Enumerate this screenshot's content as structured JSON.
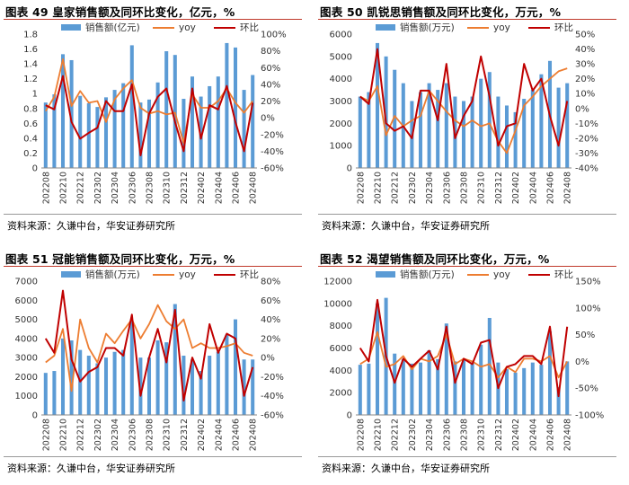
{
  "chart_data": [
    {
      "type": "bar",
      "title": "图表 49 皇家销售额及同环比变化，亿元，%",
      "source": "资料来源：久谦中台，华安证券研究所",
      "legend": {
        "bar": "销售额(亿元)",
        "yoy": "yoy",
        "mom": "环比"
      },
      "x": [
        "202208",
        "202209",
        "202210",
        "202211",
        "202212",
        "202301",
        "202302",
        "202303",
        "202304",
        "202305",
        "202306",
        "202307",
        "202308",
        "202309",
        "202310",
        "202311",
        "202312",
        "202401",
        "202402",
        "202403",
        "202404",
        "202405",
        "202406",
        "202407",
        "202408"
      ],
      "tick_labels": [
        "202208",
        "202210",
        "202212",
        "202302",
        "202304",
        "202306",
        "202308",
        "202310",
        "202312",
        "202402",
        "202404",
        "202406",
        "202408"
      ],
      "ylim_left": [
        0,
        1.8
      ],
      "yticks_left": [
        "0",
        "0.2",
        "0.4",
        "0.6",
        "0.8",
        "1",
        "1.2",
        "1.4",
        "1.6",
        "1.8"
      ],
      "ylim_right": [
        -60,
        100
      ],
      "yticks_right": [
        "-60%",
        "-40%",
        "-20%",
        "0%",
        "20%",
        "40%",
        "60%",
        "80%",
        "100%"
      ],
      "sales": [
        0.88,
        0.99,
        1.53,
        1.45,
        0.97,
        0.87,
        0.82,
        0.95,
        1.05,
        1.14,
        1.65,
        0.88,
        0.92,
        1.15,
        1.57,
        1.52,
        0.93,
        1.23,
        0.96,
        1.1,
        1.23,
        1.68,
        1.62,
        1.05,
        1.25
      ],
      "yoy": [
        8,
        25,
        70,
        14,
        32,
        18,
        20,
        -5,
        22,
        35,
        45,
        12,
        5,
        8,
        4,
        6,
        -30,
        28,
        12,
        12,
        20,
        35,
        18,
        6,
        20
      ],
      "mom": [
        15,
        10,
        50,
        -5,
        -25,
        -18,
        -12,
        20,
        8,
        8,
        40,
        -45,
        5,
        25,
        35,
        -5,
        -40,
        35,
        -25,
        15,
        10,
        38,
        -5,
        -40,
        18
      ]
    },
    {
      "type": "bar",
      "title": "图表 50 凯锐思销售额及同环比变化，万元，%",
      "source": "资料来源：久谦中台，华安证券研究所",
      "legend": {
        "bar": "销售额(万元)",
        "yoy": "yoy",
        "mom": "环比"
      },
      "x": [
        "202208",
        "202209",
        "202210",
        "202211",
        "202212",
        "202301",
        "202302",
        "202303",
        "202304",
        "202305",
        "202306",
        "202307",
        "202308",
        "202309",
        "202310",
        "202311",
        "202312",
        "202401",
        "202402",
        "202403",
        "202404",
        "202405",
        "202406",
        "202407",
        "202408"
      ],
      "tick_labels": [
        "202208",
        "202210",
        "202212",
        "202302",
        "202304",
        "202306",
        "202308",
        "202310",
        "202312",
        "202402",
        "202404",
        "202406",
        "202408"
      ],
      "ylim_left": [
        0,
        6000
      ],
      "yticks_left": [
        "0",
        "1000",
        "2000",
        "3000",
        "4000",
        "5000",
        "6000"
      ],
      "ylim_right": [
        -40,
        50
      ],
      "yticks_right": [
        "-40%",
        "-30%",
        "-20%",
        "-10%",
        "0%",
        "10%",
        "20%",
        "30%",
        "40%",
        "50%"
      ],
      "sales": [
        3200,
        3400,
        5600,
        5000,
        4400,
        3800,
        3000,
        3400,
        3800,
        3500,
        3800,
        3200,
        3000,
        3200,
        4000,
        4300,
        3200,
        2800,
        2500,
        3100,
        3500,
        4200,
        4800,
        3600,
        3800
      ],
      "yoy": [
        8,
        5,
        15,
        -18,
        -5,
        -12,
        -8,
        -5,
        12,
        5,
        -2,
        -8,
        -12,
        -8,
        -12,
        -10,
        -22,
        -30,
        -15,
        2,
        8,
        15,
        20,
        25,
        27
      ],
      "mom": [
        8,
        3,
        40,
        -10,
        -15,
        -12,
        -20,
        12,
        12,
        -8,
        30,
        -20,
        -5,
        5,
        35,
        8,
        -25,
        -12,
        -10,
        30,
        12,
        20,
        -5,
        -25,
        5
      ]
    },
    {
      "type": "bar",
      "title": "图表 51 冠能销售额及同环比变化，万元，%",
      "source": "资料来源：久谦中台，华安证券研究所",
      "legend": {
        "bar": "销售额(万元)",
        "yoy": "yoy",
        "mom": "环比"
      },
      "x": [
        "202208",
        "202209",
        "202210",
        "202211",
        "202212",
        "202301",
        "202302",
        "202303",
        "202304",
        "202305",
        "202306",
        "202307",
        "202308",
        "202309",
        "202310",
        "202311",
        "202312",
        "202401",
        "202402",
        "202403",
        "202404",
        "202405",
        "202406",
        "202407",
        "202408"
      ],
      "tick_labels": [
        "202208",
        "202210",
        "202212",
        "202302",
        "202304",
        "202306",
        "202308",
        "202310",
        "202312",
        "202402",
        "202404",
        "202406",
        "202408"
      ],
      "ylim_left": [
        0,
        7000
      ],
      "yticks_left": [
        "0",
        "1000",
        "2000",
        "3000",
        "4000",
        "5000",
        "6000",
        "7000"
      ],
      "ylim_right": [
        -60,
        80
      ],
      "yticks_right": [
        "-60%",
        "-40%",
        "-20%",
        "0%",
        "20%",
        "40%",
        "60%",
        "80%"
      ],
      "sales": [
        2200,
        2300,
        4000,
        3900,
        3400,
        3100,
        2700,
        3000,
        3300,
        3400,
        4900,
        3000,
        3000,
        3900,
        3800,
        5800,
        3100,
        2900,
        2300,
        3100,
        3300,
        4200,
        5000,
        2900,
        2900
      ],
      "yoy": [
        -5,
        2,
        30,
        -35,
        40,
        10,
        -5,
        25,
        15,
        28,
        40,
        20,
        35,
        55,
        38,
        30,
        40,
        10,
        15,
        10,
        10,
        12,
        15,
        5,
        2
      ],
      "mom": [
        20,
        5,
        70,
        -2,
        -25,
        -15,
        -10,
        10,
        10,
        2,
        45,
        -40,
        0,
        30,
        -5,
        50,
        -45,
        0,
        -22,
        35,
        5,
        25,
        20,
        -40,
        -10
      ]
    },
    {
      "type": "bar",
      "title": "图表 52 渴望销售额及同环比变化，万元，%",
      "source": "资料来源：久谦中台，华安证券研究所",
      "legend": {
        "bar": "销售额(万元)",
        "yoy": "yoy",
        "mom": "环比"
      },
      "x": [
        "202208",
        "202209",
        "202210",
        "202211",
        "202212",
        "202301",
        "202302",
        "202303",
        "202304",
        "202305",
        "202306",
        "202307",
        "202308",
        "202309",
        "202310",
        "202311",
        "202312",
        "202401",
        "202402",
        "202403",
        "202404",
        "202405",
        "202406",
        "202407",
        "202408"
      ],
      "tick_labels": [
        "202208",
        "202210",
        "202212",
        "202302",
        "202304",
        "202306",
        "202308",
        "202310",
        "202312",
        "202402",
        "202404",
        "202406",
        "202408"
      ],
      "ylim_left": [
        0,
        12000
      ],
      "yticks_left": [
        "0",
        "2000",
        "4000",
        "6000",
        "8000",
        "10000",
        "12000"
      ],
      "ylim_right": [
        -100,
        150
      ],
      "yticks_right": [
        "-100%",
        "-50%",
        "0%",
        "50%",
        "100%",
        "150%"
      ],
      "sales": [
        4500,
        4600,
        10000,
        10500,
        5500,
        5000,
        4600,
        4700,
        5800,
        5000,
        8200,
        4800,
        5000,
        4700,
        6300,
        8700,
        4700,
        4100,
        3800,
        4200,
        4700,
        4500,
        7500,
        2500,
        4800
      ],
      "yoy": [
        -5,
        5,
        55,
        -10,
        -5,
        10,
        -15,
        5,
        0,
        10,
        50,
        -5,
        5,
        0,
        -10,
        -5,
        -30,
        -10,
        -20,
        5,
        5,
        0,
        10,
        -30,
        0
      ],
      "mom": [
        25,
        0,
        115,
        10,
        -40,
        5,
        -10,
        5,
        20,
        -15,
        65,
        -40,
        5,
        -5,
        35,
        40,
        -50,
        -10,
        -5,
        10,
        10,
        -5,
        65,
        -65,
        65
      ]
    }
  ]
}
